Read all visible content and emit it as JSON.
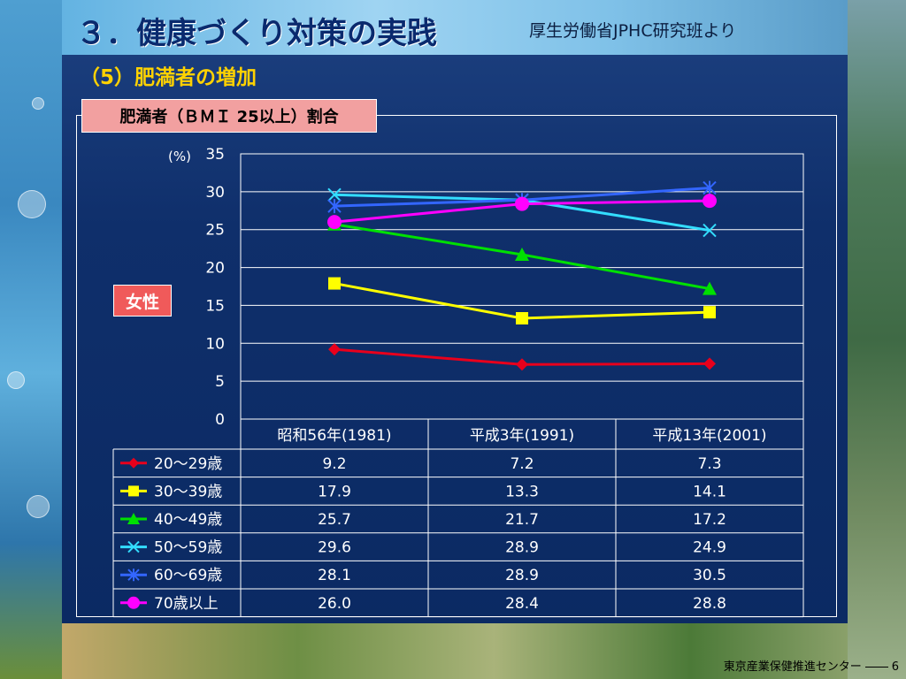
{
  "slide": {
    "title": "３．健康づくり対策の実践",
    "source": "厚生労働省JPHC研究班より",
    "subtitle": "（5）肥満者の増加",
    "chart_heading": "肥満者（ＢＭＩ 25以上）割合",
    "badge": "女性",
    "footer_org": "東京産業保健推進センター",
    "footer_page": "6"
  },
  "colors": {
    "panel": "#0b2a63",
    "subtitle": "#ffd200",
    "badge": "#f05a5a",
    "heading_bg": "#f2a0a0"
  },
  "chart_data": {
    "type": "line",
    "ylabel": "(%)",
    "ylim": [
      0,
      35
    ],
    "yticks": [
      0,
      5,
      10,
      15,
      20,
      25,
      30,
      35
    ],
    "grid": true,
    "categories": [
      "昭和56年(1981)",
      "平成3年(1991)",
      "平成13年(2001)"
    ],
    "series": [
      {
        "name": "20～29歳",
        "values": [
          9.2,
          7.2,
          7.3
        ],
        "color": "#e8001c",
        "marker": "diamond",
        "labels": [
          "9.2",
          "7.2",
          "7.3"
        ]
      },
      {
        "name": "30～39歳",
        "values": [
          17.9,
          13.3,
          14.1
        ],
        "color": "#ffff00",
        "marker": "square",
        "labels": [
          "17.9",
          "13.3",
          "14.1"
        ]
      },
      {
        "name": "40～49歳",
        "values": [
          25.7,
          21.7,
          17.2
        ],
        "color": "#00e000",
        "marker": "triangle",
        "labels": [
          "25.7",
          "21.7",
          "17.2"
        ]
      },
      {
        "name": "50～59歳",
        "values": [
          29.6,
          28.9,
          24.9
        ],
        "color": "#33ddff",
        "marker": "x",
        "labels": [
          "29.6",
          "28.9",
          "24.9"
        ]
      },
      {
        "name": "60～69歳",
        "values": [
          28.1,
          28.9,
          30.5
        ],
        "color": "#3366ff",
        "marker": "star",
        "labels": [
          "28.1",
          "28.9",
          "30.5"
        ]
      },
      {
        "name": "70歳以上",
        "values": [
          26.0,
          28.4,
          28.8
        ],
        "color": "#ff00ff",
        "marker": "circle",
        "labels": [
          "26.0",
          "28.4",
          "28.8"
        ]
      }
    ]
  }
}
